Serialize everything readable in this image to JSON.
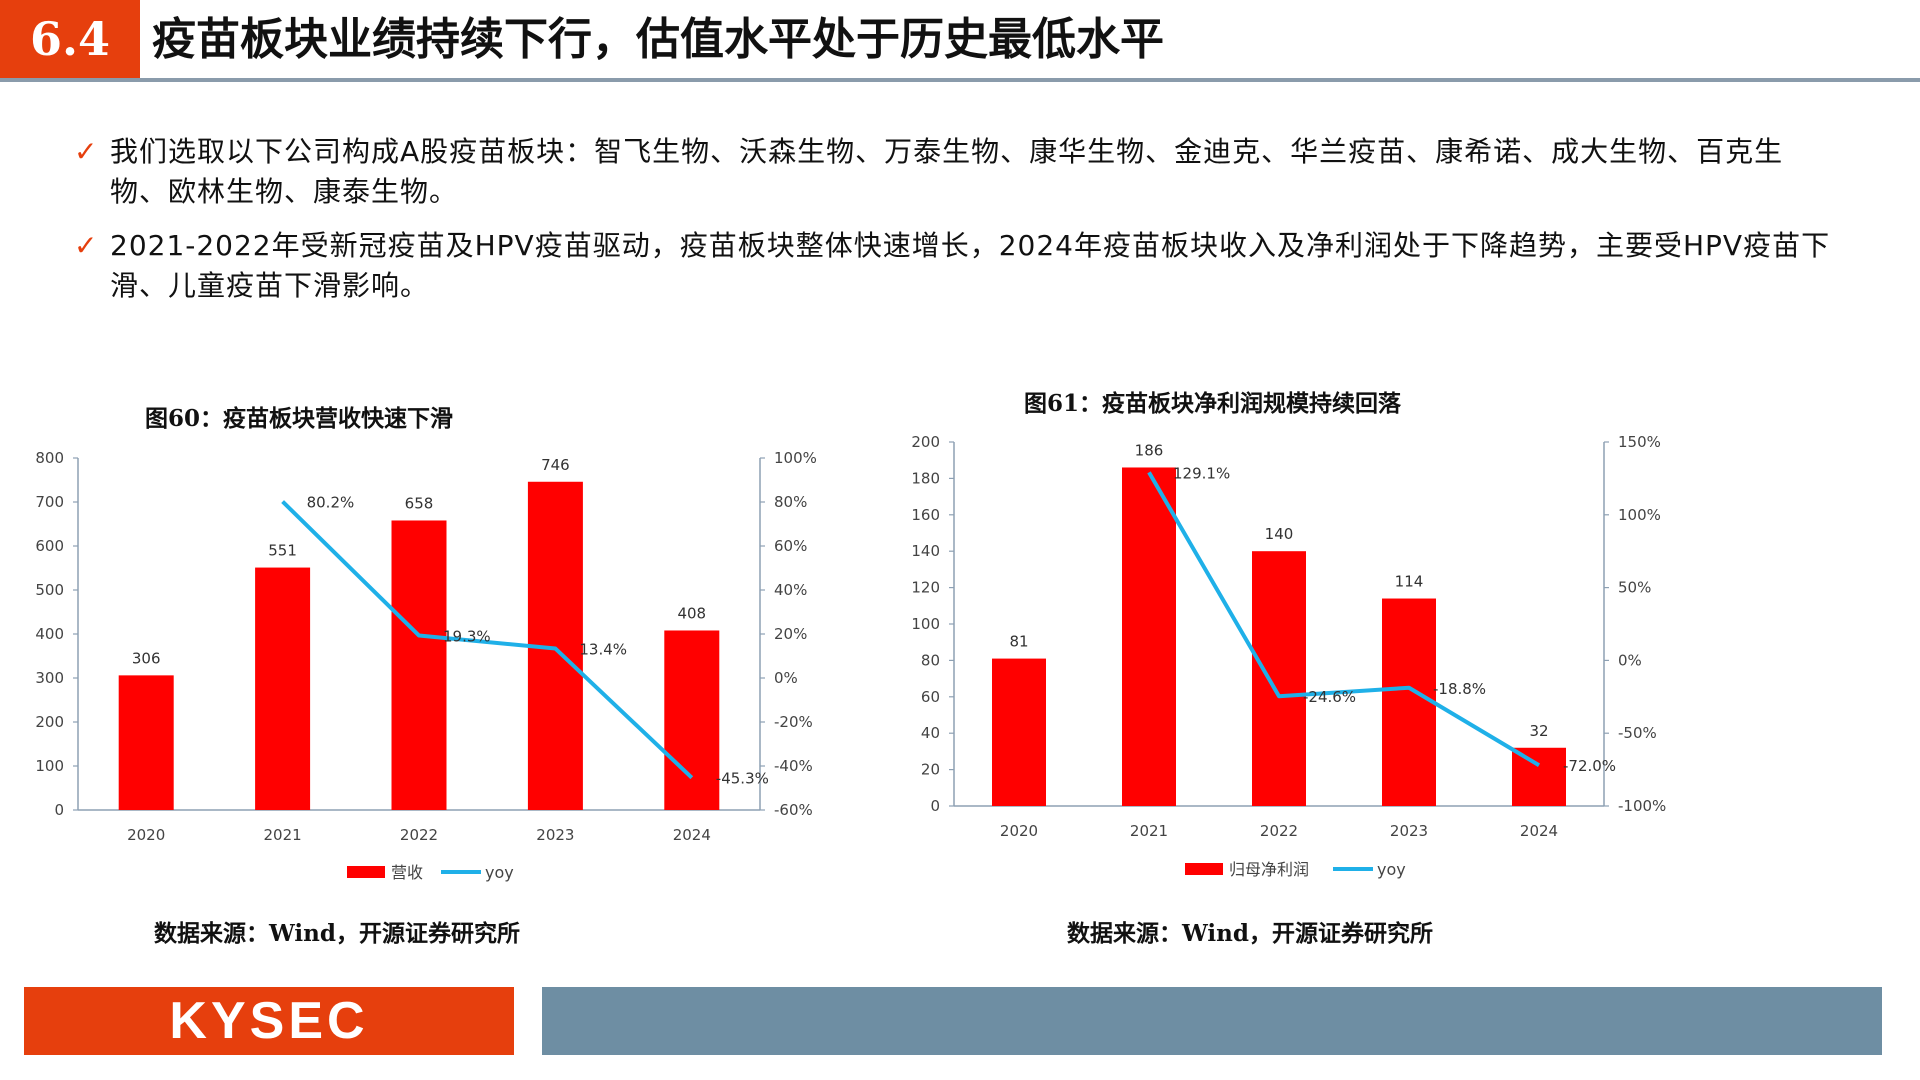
{
  "header": {
    "section_number": "6.4",
    "title": "疫苗板块业绩持续下行，估值水平处于历史最低水平"
  },
  "bullets": [
    "我们选取以下公司构成A股疫苗板块：智飞生物、沃森生物、万泰生物、康华生物、金迪克、华兰疫苗、康希诺、成大生物、百克生物、欧林生物、康泰生物。",
    "2021-2022年受新冠疫苗及HPV疫苗驱动，疫苗板块整体快速增长，2024年疫苗板块收入及净利润处于下降趋势，主要受HPV疫苗下滑、儿童疫苗下滑影响。"
  ],
  "colors": {
    "accent": "#e63f0d",
    "bar": "#ff0000",
    "line": "#1fb0e8",
    "footer_bar": "#6e8ea3",
    "check": "#e63f0d"
  },
  "chart_data": [
    {
      "type": "bar",
      "title": "图60：疫苗板块营收快速下滑",
      "categories": [
        "2020",
        "2021",
        "2022",
        "2023",
        "2024"
      ],
      "series": [
        {
          "name": "营收",
          "type": "bar",
          "axis": "left",
          "values": [
            306,
            551,
            658,
            746,
            408
          ]
        },
        {
          "name": "yoy",
          "type": "line",
          "axis": "right",
          "values": [
            null,
            80.2,
            19.3,
            13.4,
            -45.3
          ]
        }
      ],
      "left_axis": {
        "min": 0,
        "max": 800,
        "step": 100,
        "ticks": [
          "0",
          "100",
          "200",
          "300",
          "400",
          "500",
          "600",
          "700",
          "800"
        ]
      },
      "right_axis": {
        "min": -60,
        "max": 100,
        "step": 20,
        "ticks": [
          "-60%",
          "-40%",
          "-20%",
          "0%",
          "20%",
          "40%",
          "60%",
          "80%",
          "100%"
        ]
      },
      "bar_labels": [
        "306",
        "551",
        "658",
        "746",
        "408"
      ],
      "line_labels": [
        "",
        "80.2%",
        "19.3%",
        "13.4%",
        "-45.3%"
      ],
      "legend_position": "bottom",
      "source": "数据来源：Wind，开源证券研究所"
    },
    {
      "type": "bar",
      "title": "图61：疫苗板块净利润规模持续回落",
      "categories": [
        "2020",
        "2021",
        "2022",
        "2023",
        "2024"
      ],
      "series": [
        {
          "name": "归母净利润",
          "type": "bar",
          "axis": "left",
          "values": [
            81,
            186,
            140,
            114,
            32
          ]
        },
        {
          "name": "yoy",
          "type": "line",
          "axis": "right",
          "values": [
            null,
            129.1,
            -24.6,
            -18.8,
            -72.0
          ]
        }
      ],
      "left_axis": {
        "min": 0,
        "max": 200,
        "step": 20,
        "ticks": [
          "0",
          "20",
          "40",
          "60",
          "80",
          "100",
          "120",
          "140",
          "160",
          "180",
          "200"
        ]
      },
      "right_axis": {
        "min": -100,
        "max": 150,
        "step": 50,
        "ticks": [
          "-100%",
          "-50%",
          "0%",
          "50%",
          "100%",
          "150%"
        ]
      },
      "bar_labels": [
        "81",
        "186",
        "140",
        "114",
        "32"
      ],
      "line_labels": [
        "",
        "129.1%",
        "-24.6%",
        "-18.8%",
        "-72.0%"
      ],
      "legend_position": "bottom",
      "source": "数据来源：Wind，开源证券研究所"
    }
  ],
  "footer": {
    "brand": "KYSEC"
  }
}
